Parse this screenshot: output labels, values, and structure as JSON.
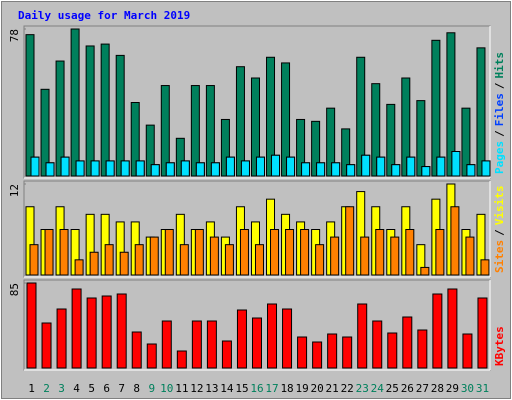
{
  "chart_data": [
    {
      "type": "bar",
      "title": "Daily usage for March 2019",
      "separator": "/",
      "ylim": [
        0,
        78
      ],
      "yticks": [
        78
      ],
      "series": [
        {
          "name": "Hits",
          "color": "#00805c",
          "values": [
            75,
            46,
            61,
            78,
            69,
            70,
            64,
            39,
            27,
            48,
            20,
            48,
            48,
            30,
            58,
            52,
            63,
            60,
            30,
            29,
            36,
            25,
            63,
            49,
            38,
            52,
            40,
            72,
            76,
            36,
            68
          ]
        },
        {
          "name": "Files",
          "color": "#0040ff",
          "values": [
            10,
            7,
            10,
            8,
            8,
            8,
            8,
            8,
            6,
            7,
            8,
            7,
            7,
            10,
            8,
            10,
            11,
            10,
            7,
            7,
            7,
            6,
            11,
            10,
            6,
            10,
            5,
            10,
            13,
            6,
            8
          ]
        },
        {
          "name": "Pages",
          "color": "#00e0ff",
          "values": [
            10,
            7,
            10,
            8,
            8,
            8,
            8,
            8,
            6,
            7,
            8,
            7,
            7,
            10,
            8,
            10,
            11,
            10,
            7,
            7,
            7,
            6,
            11,
            10,
            6,
            10,
            5,
            10,
            13,
            6,
            8
          ]
        }
      ]
    },
    {
      "type": "bar",
      "separator": "/",
      "ylim": [
        0,
        12
      ],
      "yticks": [
        12
      ],
      "series": [
        {
          "name": "Visits",
          "color": "#ffff00",
          "values": [
            9,
            6,
            9,
            6,
            8,
            8,
            7,
            7,
            5,
            6,
            8,
            6,
            7,
            5,
            9,
            7,
            10,
            8,
            7,
            6,
            7,
            9,
            11,
            9,
            6,
            9,
            4,
            10,
            12,
            6,
            8
          ]
        },
        {
          "name": "Sites",
          "color": "#ff8000",
          "values": [
            4,
            6,
            6,
            2,
            3,
            4,
            3,
            4,
            5,
            6,
            4,
            6,
            5,
            4,
            6,
            4,
            6,
            6,
            6,
            4,
            5,
            9,
            5,
            6,
            5,
            6,
            1,
            6,
            9,
            5,
            2
          ]
        }
      ]
    },
    {
      "type": "bar",
      "ylim": [
        0,
        85
      ],
      "yticks": [
        85
      ],
      "categories": [
        "1",
        "2",
        "3",
        "4",
        "5",
        "6",
        "7",
        "8",
        "9",
        "10",
        "11",
        "12",
        "13",
        "14",
        "15",
        "16",
        "17",
        "18",
        "19",
        "20",
        "21",
        "22",
        "23",
        "24",
        "25",
        "26",
        "27",
        "28",
        "29",
        "30",
        "31"
      ],
      "category_colors": [
        "#000000",
        "#00805c",
        "#00805c",
        "#000000",
        "#000000",
        "#000000",
        "#000000",
        "#000000",
        "#00805c",
        "#00805c",
        "#000000",
        "#000000",
        "#000000",
        "#000000",
        "#000000",
        "#00805c",
        "#00805c",
        "#000000",
        "#000000",
        "#000000",
        "#000000",
        "#000000",
        "#00805c",
        "#00805c",
        "#000000",
        "#000000",
        "#000000",
        "#000000",
        "#000000",
        "#00805c",
        "#00805c"
      ],
      "series": [
        {
          "name": "KBytes",
          "color": "#ff0000",
          "values": [
            85,
            45,
            59,
            79,
            70,
            72,
            74,
            36,
            24,
            47,
            17,
            47,
            47,
            27,
            58,
            50,
            64,
            59,
            31,
            26,
            34,
            31,
            64,
            47,
            35,
            51,
            38,
            74,
            79,
            34,
            70
          ]
        }
      ]
    }
  ]
}
